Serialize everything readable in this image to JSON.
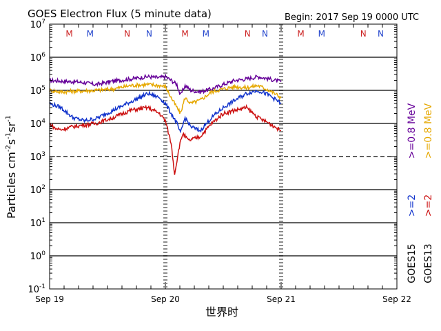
{
  "chart_data": {
    "type": "line",
    "title": "GOES Electron Flux (5 minute data)",
    "begin_text": "Begin: 2017 Sep 19 0000 UTC",
    "xlabel": "世界时",
    "ylabel": {
      "base": "Particles cm",
      "exp1": "-2",
      "mid1": "s",
      "exp2": "-1",
      "mid2": "sr",
      "exp3": "-1"
    },
    "y_scale": "log",
    "ylim": [
      0.1,
      10000000
    ],
    "y_ticks": [
      {
        "value": 0.1,
        "base": "10",
        "exp": "-1"
      },
      {
        "value": 1,
        "base": "10",
        "exp": "0"
      },
      {
        "value": 10,
        "base": "10",
        "exp": "1"
      },
      {
        "value": 100,
        "base": "10",
        "exp": "2"
      },
      {
        "value": 1000,
        "base": "10",
        "exp": "3"
      },
      {
        "value": 10000,
        "base": "10",
        "exp": "4"
      },
      {
        "value": 100000,
        "base": "10",
        "exp": "5"
      },
      {
        "value": 1000000,
        "base": "10",
        "exp": "6"
      },
      {
        "value": 10000000,
        "base": "10",
        "exp": "7"
      }
    ],
    "xlim": [
      "2017-09-19 00:00",
      "2017-09-22 00:00"
    ],
    "x_ticks": [
      "Sep 19",
      "Sep 20",
      "Sep 21",
      "Sep 22"
    ],
    "grid": "horizontal lines at each decade; dashed line at 10^3 threshold",
    "threshold": 1000,
    "mn_markers": [
      {
        "t": 0.17,
        "label": "M",
        "color": "#cc2222"
      },
      {
        "t": 0.35,
        "label": "M",
        "color": "#2244cc"
      },
      {
        "t": 0.67,
        "label": "N",
        "color": "#cc2222"
      },
      {
        "t": 0.86,
        "label": "N",
        "color": "#2244cc"
      },
      {
        "t": 1.17,
        "label": "M",
        "color": "#cc2222"
      },
      {
        "t": 1.35,
        "label": "M",
        "color": "#2244cc"
      },
      {
        "t": 1.71,
        "label": "N",
        "color": "#cc2222"
      },
      {
        "t": 1.86,
        "label": "N",
        "color": "#2244cc"
      },
      {
        "t": 2.17,
        "label": "M",
        "color": "#cc2222"
      },
      {
        "t": 2.35,
        "label": "M",
        "color": "#2244cc"
      },
      {
        "t": 2.71,
        "label": "N",
        "color": "#cc2222"
      },
      {
        "t": 2.86,
        "label": "N",
        "color": "#2244cc"
      }
    ],
    "x_unit": "days since 2017 Sep 19 0000 UTC",
    "series": [
      {
        "name": "GOES15 >=0.8 MeV",
        "color": "#660099",
        "x": [
          0,
          0.1,
          0.25,
          0.4,
          0.55,
          0.7,
          0.85,
          0.95,
          1.0,
          1.05,
          1.1,
          1.13,
          1.17,
          1.22,
          1.3,
          1.4,
          1.5,
          1.6,
          1.7,
          1.8,
          1.9,
          2.0
        ],
        "y": [
          200000,
          190000,
          180000,
          150000,
          190000,
          220000,
          260000,
          240000,
          260000,
          200000,
          150000,
          70000,
          140000,
          100000,
          90000,
          110000,
          150000,
          200000,
          220000,
          260000,
          220000,
          180000
        ]
      },
      {
        "name": "GOES13 >=0.8 MeV",
        "color": "#e6a800",
        "x": [
          0,
          0.1,
          0.25,
          0.4,
          0.55,
          0.7,
          0.85,
          0.95,
          1.0,
          1.05,
          1.1,
          1.13,
          1.17,
          1.22,
          1.3,
          1.4,
          1.5,
          1.6,
          1.7,
          1.8,
          1.9,
          2.0
        ],
        "y": [
          100000,
          90000,
          95000,
          100000,
          110000,
          140000,
          150000,
          140000,
          130000,
          60000,
          30000,
          20000,
          60000,
          40000,
          50000,
          90000,
          110000,
          130000,
          120000,
          140000,
          100000,
          60000
        ]
      },
      {
        "name": "GOES15 >=2 MeV",
        "color": "#1133cc",
        "x": [
          0,
          0.1,
          0.2,
          0.3,
          0.4,
          0.55,
          0.7,
          0.85,
          0.95,
          1.0,
          1.05,
          1.1,
          1.13,
          1.17,
          1.22,
          1.3,
          1.4,
          1.5,
          1.6,
          1.7,
          1.8,
          1.9,
          2.0
        ],
        "y": [
          40000,
          30000,
          15000,
          12000,
          14000,
          25000,
          45000,
          80000,
          60000,
          40000,
          20000,
          10000,
          5000,
          15000,
          8000,
          6000,
          15000,
          30000,
          50000,
          80000,
          100000,
          70000,
          40000
        ]
      },
      {
        "name": "GOES13 >=2 MeV",
        "color": "#cc1111",
        "x": [
          0,
          0.05,
          0.1,
          0.2,
          0.3,
          0.4,
          0.55,
          0.7,
          0.85,
          0.95,
          1.0,
          1.05,
          1.08,
          1.12,
          1.15,
          1.2,
          1.3,
          1.4,
          1.5,
          1.6,
          1.7,
          1.8,
          1.9,
          2.0
        ],
        "y": [
          10000,
          7000,
          6500,
          8000,
          9000,
          10000,
          15000,
          25000,
          30000,
          20000,
          12000,
          2500,
          300,
          2000,
          5000,
          3000,
          4000,
          10000,
          20000,
          25000,
          30000,
          15000,
          10000,
          6000
        ]
      }
    ],
    "legend": [
      {
        "label": ">=0.8 MeV",
        "color": "#660099"
      },
      {
        "label": ">=0.8 MeV",
        "color": "#e6a800"
      },
      {
        "label": ">=2",
        "color": "#1133cc"
      },
      {
        "label": ">=2",
        "color": "#cc1111"
      },
      {
        "label": "GOES15",
        "color": "#000000"
      },
      {
        "label": "GOES13",
        "color": "#000000"
      }
    ]
  }
}
